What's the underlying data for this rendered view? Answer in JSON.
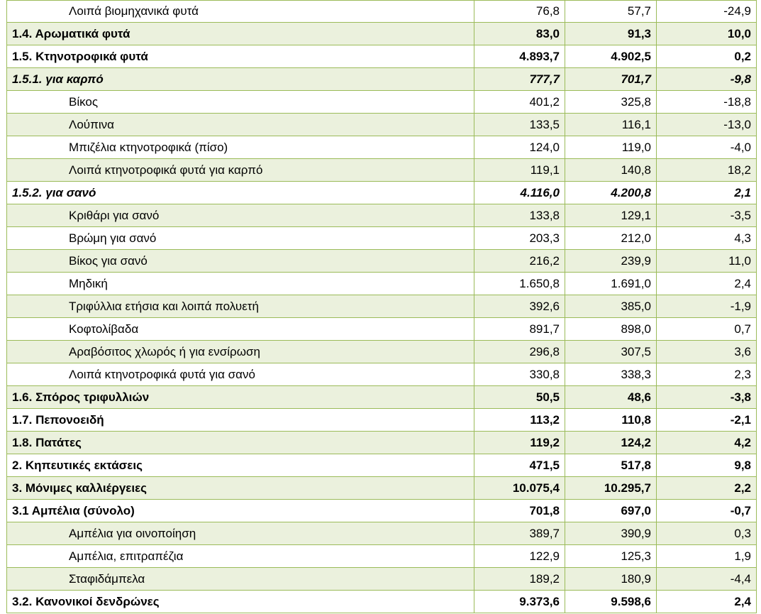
{
  "rows": [
    {
      "label": "Λοιπά βιομηχανικά φυτά",
      "v1": "76,8",
      "v2": "57,7",
      "v3": "-24,9",
      "style": "sub",
      "shade": false
    },
    {
      "label": "1.4. Αρωματικά φυτά",
      "v1": "83,0",
      "v2": "91,3",
      "v3": "10,0",
      "style": "bold",
      "shade": true
    },
    {
      "label": "1.5. Κτηνοτροφικά φυτά",
      "v1": "4.893,7",
      "v2": "4.902,5",
      "v3": "0,2",
      "style": "bold",
      "shade": false
    },
    {
      "label": "1.5.1. για καρπό",
      "v1": "777,7",
      "v2": "701,7",
      "v3": "-9,8",
      "style": "bolditalic",
      "shade": true
    },
    {
      "label": "Βίκος",
      "v1": "401,2",
      "v2": "325,8",
      "v3": "-18,8",
      "style": "sub",
      "shade": false
    },
    {
      "label": "Λούπινα",
      "v1": "133,5",
      "v2": "116,1",
      "v3": "-13,0",
      "style": "sub",
      "shade": true
    },
    {
      "label": "Μπιζέλια κτηνοτροφικά (πίσο)",
      "v1": "124,0",
      "v2": "119,0",
      "v3": "-4,0",
      "style": "sub",
      "shade": false
    },
    {
      "label": "Λοιπά κτηνοτροφικά φυτά για καρπό",
      "v1": "119,1",
      "v2": "140,8",
      "v3": "18,2",
      "style": "sub",
      "shade": true
    },
    {
      "label": "1.5.2. για σανό",
      "v1": "4.116,0",
      "v2": "4.200,8",
      "v3": "2,1",
      "style": "bolditalic",
      "shade": false
    },
    {
      "label": "Κριθάρι για σανό",
      "v1": "133,8",
      "v2": "129,1",
      "v3": "-3,5",
      "style": "sub",
      "shade": true
    },
    {
      "label": "Βρώμη για σανό",
      "v1": "203,3",
      "v2": "212,0",
      "v3": "4,3",
      "style": "sub",
      "shade": false
    },
    {
      "label": "Βίκος για σανό",
      "v1": "216,2",
      "v2": "239,9",
      "v3": "11,0",
      "style": "sub",
      "shade": true
    },
    {
      "label": "Μηδική",
      "v1": "1.650,8",
      "v2": "1.691,0",
      "v3": "2,4",
      "style": "sub",
      "shade": false
    },
    {
      "label": "Τριφύλλια ετήσια και λοιπά πολυετή",
      "v1": "392,6",
      "v2": "385,0",
      "v3": "-1,9",
      "style": "sub",
      "shade": true
    },
    {
      "label": "Κοφτολίβαδα",
      "v1": "891,7",
      "v2": "898,0",
      "v3": "0,7",
      "style": "sub",
      "shade": false
    },
    {
      "label": "Αραβόσιτος χλωρός ή για ενσίρωση",
      "v1": "296,8",
      "v2": "307,5",
      "v3": "3,6",
      "style": "sub",
      "shade": true
    },
    {
      "label": "Λοιπά κτηνοτροφικά φυτά για σανό",
      "v1": "330,8",
      "v2": "338,3",
      "v3": "2,3",
      "style": "sub",
      "shade": false
    },
    {
      "label": "1.6. Σπόρος τριφυλλιών",
      "v1": "50,5",
      "v2": "48,6",
      "v3": "-3,8",
      "style": "bold",
      "shade": true
    },
    {
      "label": "1.7. Πεπονοειδή",
      "v1": "113,2",
      "v2": "110,8",
      "v3": "-2,1",
      "style": "bold",
      "shade": false
    },
    {
      "label": "1.8. Πατάτες",
      "v1": "119,2",
      "v2": "124,2",
      "v3": "4,2",
      "style": "bold",
      "shade": true
    },
    {
      "label": "2. Κηπευτικές εκτάσεις",
      "v1": "471,5",
      "v2": "517,8",
      "v3": "9,8",
      "style": "bold",
      "shade": false
    },
    {
      "label": "3. Μόνιμες καλλιέργειες",
      "v1": "10.075,4",
      "v2": "10.295,7",
      "v3": "2,2",
      "style": "bold",
      "shade": true
    },
    {
      "label": "3.1 Αμπέλια  (σύνολο)",
      "v1": "701,8",
      "v2": "697,0",
      "v3": "-0,7",
      "style": "bold",
      "shade": false
    },
    {
      "label": "Αμπέλια για οινοποίηση",
      "v1": "389,7",
      "v2": "390,9",
      "v3": "0,3",
      "style": "sub",
      "shade": true
    },
    {
      "label": "Αμπέλια, επιτραπέζια",
      "v1": "122,9",
      "v2": "125,3",
      "v3": "1,9",
      "style": "sub",
      "shade": false
    },
    {
      "label": "Σταφιδάμπελα",
      "v1": "189,2",
      "v2": "180,9",
      "v3": "-4,4",
      "style": "sub",
      "shade": true
    },
    {
      "label": "3.2. Κανονικοί δενδρώνες",
      "v1": "9.373,6",
      "v2": "9.598,6",
      "v3": "2,4",
      "style": "bold",
      "shade": false
    }
  ]
}
